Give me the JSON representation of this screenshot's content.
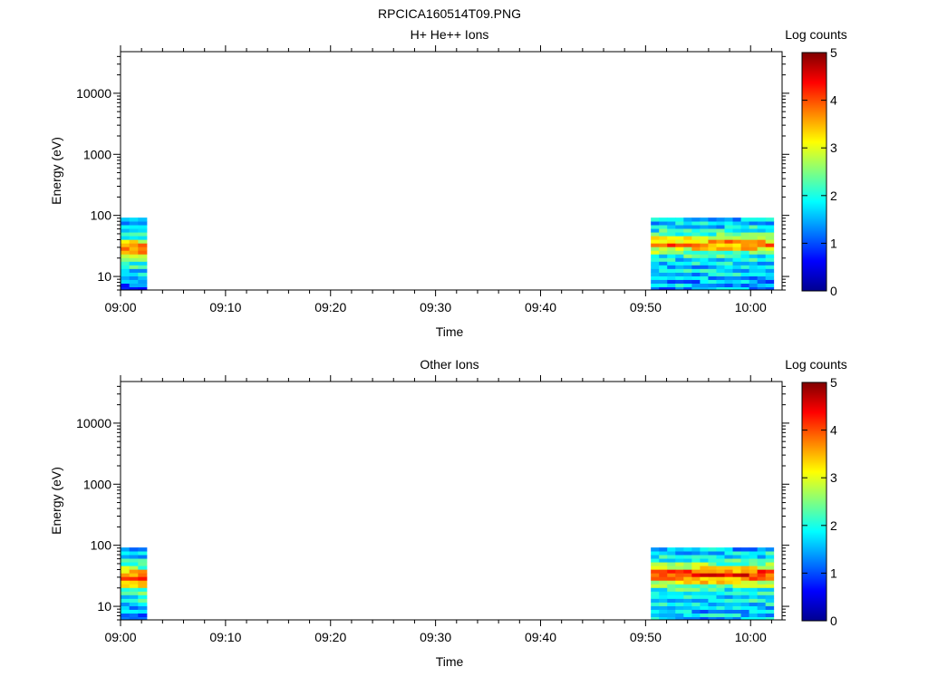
{
  "figure": {
    "title": "RPCICA160514T09.PNG"
  },
  "colormap": [
    "#00008f",
    "#0000ff",
    "#0080ff",
    "#00ffff",
    "#80ff80",
    "#ffff00",
    "#ff8000",
    "#ff0000",
    "#800000"
  ],
  "chart_data": [
    {
      "type": "heatmap",
      "title": "H+ He++ Ions",
      "xlabel": "Time",
      "ylabel": "Energy (eV)",
      "x_ticks": [
        "09:00",
        "09:10",
        "09:20",
        "09:30",
        "09:40",
        "09:50",
        "10:00"
      ],
      "y_ticks": [
        "10",
        "100",
        "1000",
        "10000"
      ],
      "y_scale": "log",
      "ylim": [
        6,
        48000
      ],
      "xlim": [
        "09:00",
        "10:03"
      ],
      "colorbar": {
        "label": "Log counts",
        "range": [
          0,
          5
        ],
        "ticks": [
          "0",
          "1",
          "2",
          "3",
          "4",
          "5"
        ]
      },
      "energy_bins_eV": [
        6.3,
        7.2,
        8.3,
        9.5,
        10.9,
        12.5,
        14.4,
        16.5,
        18.9,
        21.7,
        24.9,
        28.6,
        32.8,
        37.6,
        43.2,
        49.6,
        56.9,
        65.3,
        74.9,
        86.0
      ],
      "blocks": [
        {
          "start": "09:00",
          "end": "09:02.5",
          "profile": [
            1.1,
            1.4,
            1.6,
            1.7,
            1.8,
            2.0,
            2.1,
            2.3,
            2.5,
            3.1,
            3.6,
            3.9,
            3.8,
            3.0,
            2.4,
            2.1,
            1.9,
            1.8,
            1.6,
            1.7
          ]
        },
        {
          "start": "09:50.5",
          "end": "10:02.2",
          "profile": [
            1.6,
            1.7,
            1.6,
            1.7,
            1.8,
            1.9,
            1.8,
            1.9,
            2.0,
            2.2,
            2.6,
            3.3,
            3.9,
            3.6,
            3.0,
            2.4,
            2.1,
            1.9,
            1.8,
            1.8
          ]
        }
      ]
    },
    {
      "type": "heatmap",
      "title": "Other Ions",
      "xlabel": "Time",
      "ylabel": "Energy (eV)",
      "x_ticks": [
        "09:00",
        "09:10",
        "09:20",
        "09:30",
        "09:40",
        "09:50",
        "10:00"
      ],
      "y_ticks": [
        "10",
        "100",
        "1000",
        "10000"
      ],
      "y_scale": "log",
      "ylim": [
        6,
        48000
      ],
      "xlim": [
        "09:00",
        "10:03"
      ],
      "colorbar": {
        "label": "Log counts",
        "range": [
          0,
          5
        ],
        "ticks": [
          "0",
          "1",
          "2",
          "3",
          "4",
          "5"
        ]
      },
      "energy_bins_eV": [
        6.3,
        7.2,
        8.3,
        9.5,
        10.9,
        12.5,
        14.4,
        16.5,
        18.9,
        21.7,
        24.9,
        28.6,
        32.8,
        37.6,
        43.2,
        49.6,
        56.9,
        65.3,
        74.9,
        86.0
      ],
      "blocks": [
        {
          "start": "09:00",
          "end": "09:02.5",
          "profile": [
            1.2,
            1.5,
            1.7,
            1.8,
            1.9,
            2.0,
            2.2,
            2.4,
            2.7,
            3.3,
            3.9,
            4.2,
            4.1,
            3.4,
            2.7,
            2.2,
            1.9,
            1.8,
            1.6,
            1.8
          ]
        },
        {
          "start": "09:50.5",
          "end": "10:02.2",
          "profile": [
            1.7,
            1.8,
            1.7,
            1.8,
            1.9,
            2.0,
            1.9,
            2.0,
            2.2,
            2.6,
            3.2,
            3.8,
            4.3,
            4.0,
            3.3,
            2.6,
            2.2,
            2.0,
            1.9,
            1.7
          ]
        }
      ]
    }
  ]
}
